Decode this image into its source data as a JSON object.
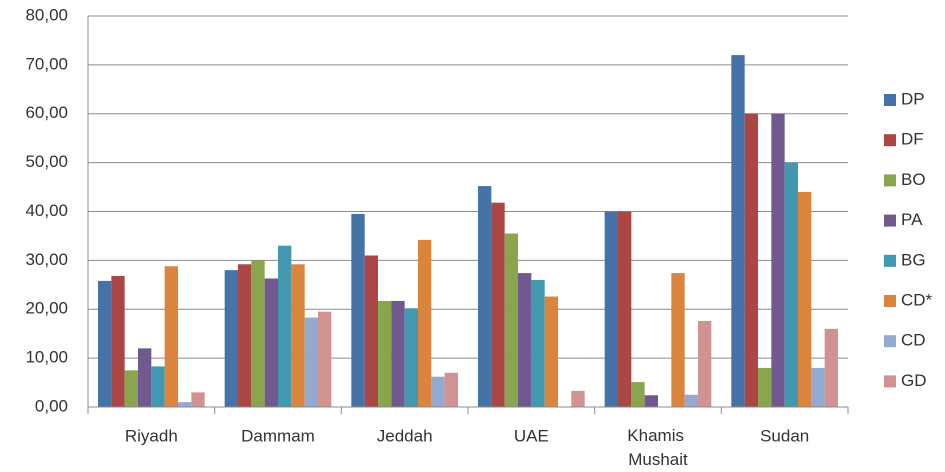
{
  "chart_data": {
    "type": "bar",
    "categories": [
      "Riyadh",
      "Dammam",
      "Jeddah",
      "UAE",
      "Khamis Mushait",
      "Sudan"
    ],
    "series": [
      {
        "name": "DP",
        "color": "#4572a7",
        "values": [
          25.8,
          28,
          39.5,
          45.2,
          40,
          72
        ]
      },
      {
        "name": "DF",
        "color": "#aa4643",
        "values": [
          26.8,
          29.2,
          31,
          41.8,
          40,
          60
        ]
      },
      {
        "name": "BO",
        "color": "#89a54e",
        "values": [
          7.5,
          30,
          21.7,
          35.5,
          5.1,
          8
        ]
      },
      {
        "name": "PA",
        "color": "#71588f",
        "values": [
          12,
          26.3,
          21.7,
          27.4,
          2.4,
          60
        ]
      },
      {
        "name": "BG",
        "color": "#4198af",
        "values": [
          8.3,
          33,
          20.2,
          26,
          0,
          50
        ]
      },
      {
        "name": "CD*",
        "color": "#db843d",
        "values": [
          28.8,
          29.2,
          34.2,
          22.6,
          27.4,
          44
        ]
      },
      {
        "name": "CD",
        "color": "#93a9cf",
        "values": [
          1,
          18.3,
          6.2,
          0,
          2.5,
          8
        ]
      },
      {
        "name": "GD",
        "color": "#d19392",
        "values": [
          3,
          19.5,
          7,
          3.3,
          17.6,
          16
        ]
      }
    ],
    "ylim": [
      0,
      80
    ],
    "yticks": [
      {
        "value": 0,
        "label": "0,00"
      },
      {
        "value": 10,
        "label": "10,00"
      },
      {
        "value": 20,
        "label": "20,00"
      },
      {
        "value": 30,
        "label": "30,00"
      },
      {
        "value": 40,
        "label": "40,00"
      },
      {
        "value": 50,
        "label": "50,00"
      },
      {
        "value": 60,
        "label": "60,00"
      },
      {
        "value": 70,
        "label": "70,00"
      },
      {
        "value": 80,
        "label": "80,00"
      }
    ],
    "grid": true,
    "legend": "right"
  }
}
